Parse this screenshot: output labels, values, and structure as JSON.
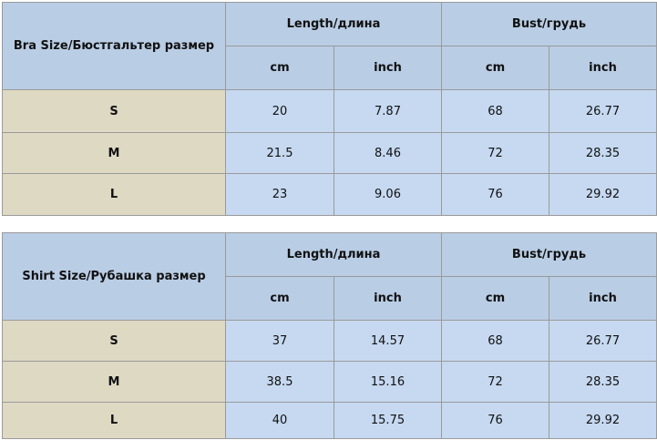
{
  "tables": [
    {
      "size_label": "Bra Size/Бюстгальтер размер",
      "groups": [
        {
          "label": "Length/длина",
          "units": [
            "cm",
            "inch"
          ]
        },
        {
          "label": "Bust/грудь",
          "units": [
            "cm",
            "inch"
          ]
        }
      ],
      "rows": [
        [
          "S",
          20,
          7.87,
          68,
          26.77
        ],
        [
          "M",
          21.5,
          8.46,
          72,
          28.35
        ],
        [
          "L",
          23,
          9.06,
          76,
          29.92
        ]
      ]
    },
    {
      "size_label": "Shirt Size/Рубашка размер",
      "groups": [
        {
          "label": "Length/длина",
          "units": [
            "cm",
            "inch"
          ]
        },
        {
          "label": "Bust/грудь",
          "units": [
            "cm",
            "inch"
          ]
        }
      ],
      "rows": [
        [
          "S",
          37,
          14.57,
          68,
          26.77
        ],
        [
          "M",
          38.5,
          15.16,
          72,
          28.35
        ],
        [
          "L",
          40,
          15.75,
          76,
          29.92
        ]
      ]
    }
  ]
}
